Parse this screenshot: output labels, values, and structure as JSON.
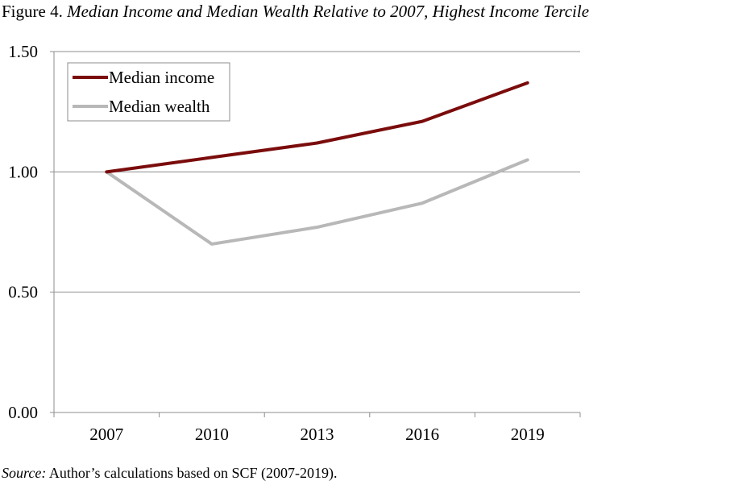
{
  "figure": {
    "prefix": "Figure 4.",
    "title": "Median Income and Median Wealth Relative to 2007, Highest Income Tercile"
  },
  "source": {
    "label": "Source:",
    "text": "Author’s calculations based on SCF (2007-2019)."
  },
  "chart_data": {
    "type": "line",
    "title": "Median Income and Median Wealth Relative to 2007, Highest Income Tercile",
    "xlabel": "",
    "ylabel": "",
    "categories": [
      "2007",
      "2010",
      "2013",
      "2016",
      "2019"
    ],
    "ylim": [
      0,
      1.5
    ],
    "yticks": [
      "0.00",
      "0.50",
      "1.00",
      "1.50"
    ],
    "grid": "horizontal",
    "legend_position": "top-left",
    "series": [
      {
        "name": "Median income",
        "color": "#7b0c0c",
        "values": [
          1.0,
          1.06,
          1.12,
          1.21,
          1.37
        ]
      },
      {
        "name": "Median wealth",
        "color": "#b8b8b8",
        "values": [
          1.0,
          0.7,
          0.77,
          0.87,
          1.05
        ]
      }
    ]
  }
}
